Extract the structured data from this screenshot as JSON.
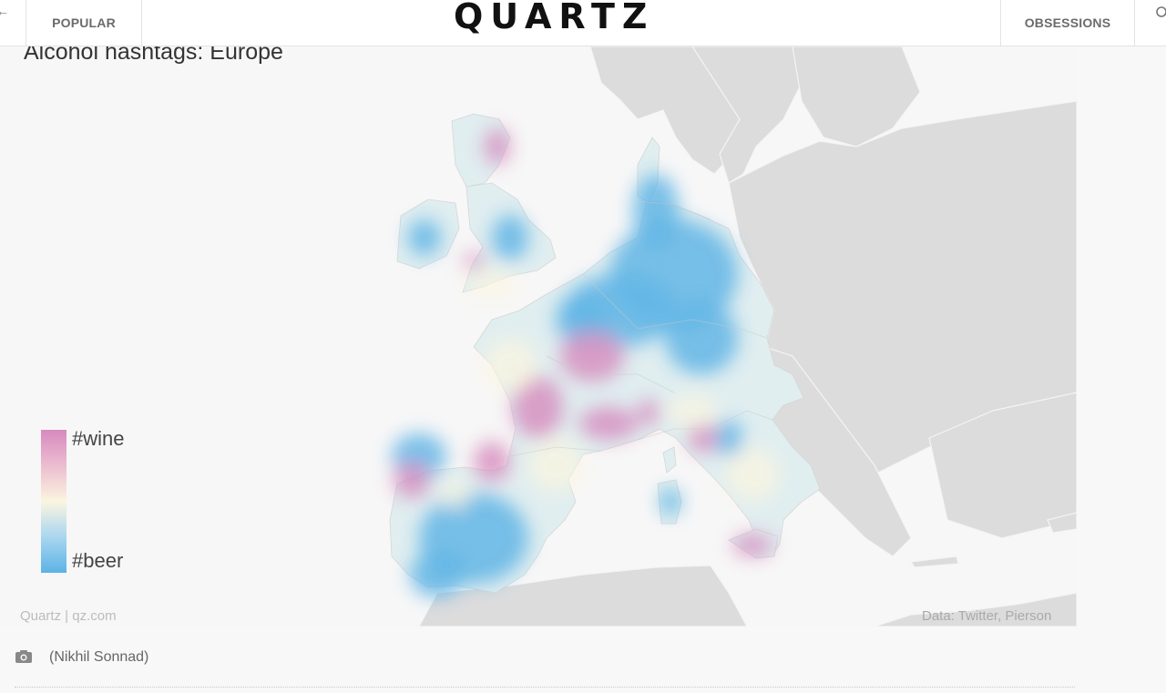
{
  "nav": {
    "popular_label": "POPULAR",
    "logo_text": "QUARTZ",
    "obsessions_label": "OBSESSIONS"
  },
  "figure": {
    "title": "Alcohol hashtags: Europe",
    "legend": {
      "top_label": "#wine",
      "bottom_label": "#beer",
      "colors": {
        "wine": "#d68bbd",
        "neutral": "#fbf5df",
        "beer": "#5cb3e5"
      }
    },
    "credit_left": "Quartz | qz.com",
    "credit_right": "Data: Twitter, Pierson"
  },
  "caption": {
    "icon": "camera-icon",
    "text": "(Nikhil Sonnad)"
  },
  "colors": {
    "land_gray": "#dcdcdc",
    "water": "#f7f7f7",
    "heat_base": "#e0eef0"
  }
}
